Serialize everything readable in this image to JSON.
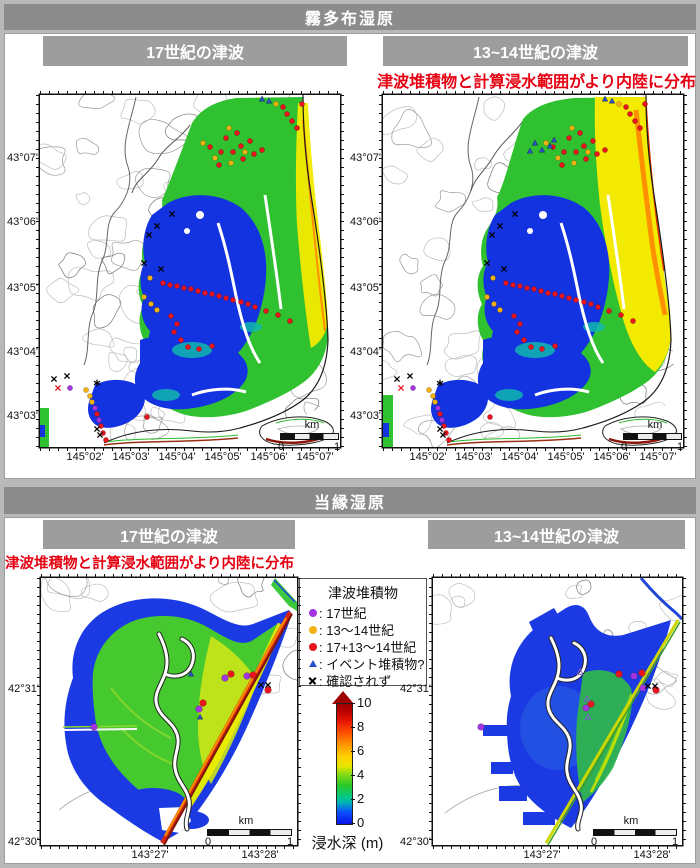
{
  "sections": {
    "kiritappu": {
      "title": "霧多布湿原",
      "left_header": "17世紀の津波",
      "right_header": "13~14世紀の津波",
      "annotation": "津波堆積物と計算浸水範囲がより内陸に分布"
    },
    "toberi": {
      "title": "当縁湿原",
      "left_header": "17世紀の津波",
      "right_header": "13~14世紀の津波",
      "annotation": "津波堆積物と計算浸水範囲がより内陸に分布"
    }
  },
  "axes": {
    "k_lat": [
      "43°07'",
      "43°06'",
      "43°05'",
      "43°04'",
      "43°03'"
    ],
    "k_lon": [
      "145°02'",
      "145°03'",
      "145°04'",
      "145°05'",
      "145°06'",
      "145°07'"
    ],
    "t_lat": [
      "42°31'",
      "42°30'"
    ],
    "t_lon": [
      "143°27'",
      "143°28'"
    ]
  },
  "legend": {
    "title": "津波堆積物",
    "items": [
      {
        "symbol": "dot",
        "color": "#a335e0",
        "label": ": 17世紀"
      },
      {
        "symbol": "dot",
        "color": "#f2b211",
        "label": ": 13〜14世紀"
      },
      {
        "symbol": "dot",
        "color": "#e8141e",
        "label": ": 17+13〜14世紀"
      },
      {
        "symbol": "triangle",
        "color": "#2a50c8",
        "label": ": イベント堆積物?"
      },
      {
        "symbol": "cross",
        "color": "#000000",
        "label": ": 確認されず"
      }
    ]
  },
  "colorbar": {
    "ticks": [
      "10",
      "8",
      "6",
      "4",
      "2",
      "0"
    ],
    "label": "浸水深 (m)"
  },
  "scalebar": {
    "unit": "km",
    "start": "0",
    "end": "1"
  },
  "marker_colors": {
    "p": "#a335e0",
    "y": "#f2b211",
    "r": "#e8141e",
    "b": "#2a50c8",
    "o": "#7a5ad0",
    "x": "#000000",
    "rx": "#e8141e",
    "s": "#000000"
  },
  "markers": {
    "k_common": [
      [
        "y",
        163,
        48
      ],
      [
        "y",
        175,
        63
      ],
      [
        "y",
        189,
        33
      ],
      [
        "y",
        191,
        68
      ],
      [
        "y",
        205,
        57
      ],
      [
        "r",
        170,
        52
      ],
      [
        "r",
        181,
        57
      ],
      [
        "r",
        193,
        57
      ],
      [
        "r",
        201,
        51
      ],
      [
        "r",
        186,
        43
      ],
      [
        "r",
        210,
        46
      ],
      [
        "r",
        197,
        38
      ],
      [
        "r",
        179,
        70
      ],
      [
        "r",
        203,
        64
      ],
      [
        "r",
        214,
        59
      ],
      [
        "r",
        222,
        55
      ],
      [
        "r",
        243,
        12
      ],
      [
        "r",
        247,
        19
      ],
      [
        "r",
        252,
        26
      ],
      [
        "r",
        257,
        33
      ],
      [
        "r",
        262,
        9
      ],
      [
        "y",
        236,
        9
      ],
      [
        "b",
        229,
        6
      ],
      [
        "b",
        222,
        4
      ],
      [
        "x",
        132,
        119
      ],
      [
        "x",
        117,
        131
      ],
      [
        "x",
        109,
        140
      ],
      [
        "x",
        121,
        174
      ],
      [
        "x",
        104,
        168
      ],
      [
        "y",
        110,
        183
      ],
      [
        "y",
        104,
        202
      ],
      [
        "y",
        111,
        209
      ],
      [
        "y",
        117,
        215
      ],
      [
        "r",
        123,
        188
      ],
      [
        "r",
        130,
        190
      ],
      [
        "r",
        137,
        191
      ],
      [
        "r",
        144,
        193
      ],
      [
        "r",
        151,
        194
      ],
      [
        "r",
        158,
        196
      ],
      [
        "r",
        165,
        198
      ],
      [
        "r",
        172,
        199
      ],
      [
        "r",
        179,
        201
      ],
      [
        "r",
        186,
        203
      ],
      [
        "r",
        193,
        205
      ],
      [
        "r",
        201,
        207
      ],
      [
        "r",
        208,
        209
      ],
      [
        "r",
        215,
        212
      ],
      [
        "r",
        226,
        216
      ],
      [
        "r",
        238,
        220
      ],
      [
        "r",
        250,
        226
      ],
      [
        "r",
        131,
        221
      ],
      [
        "r",
        137,
        229
      ],
      [
        "r",
        134,
        237
      ],
      [
        "r",
        141,
        245
      ],
      [
        "r",
        148,
        252
      ],
      [
        "r",
        159,
        254
      ],
      [
        "r",
        172,
        251
      ],
      [
        "r",
        107,
        322
      ],
      [
        "rx",
        18,
        293
      ],
      [
        "x",
        14,
        284
      ],
      [
        "x",
        27,
        281
      ],
      [
        "s",
        57,
        288
      ],
      [
        "y",
        46,
        295
      ],
      [
        "y",
        50,
        301
      ],
      [
        "y",
        52,
        307
      ],
      [
        "p",
        30,
        293
      ],
      [
        "p",
        55,
        313
      ],
      [
        "p",
        59,
        325
      ],
      [
        "r",
        57,
        319
      ],
      [
        "r",
        61,
        331
      ],
      [
        "r",
        63,
        338
      ],
      [
        "r",
        66,
        345
      ],
      [
        "x",
        57,
        334
      ],
      [
        "x",
        60,
        340
      ]
    ],
    "k13_extra": [
      [
        "b",
        152,
        48
      ],
      [
        "b",
        159,
        55
      ],
      [
        "b",
        167,
        51
      ],
      [
        "b",
        147,
        56
      ],
      [
        "b",
        171,
        45
      ]
    ],
    "t17": [
      [
        "p",
        184,
        100
      ],
      [
        "p",
        206,
        98
      ],
      [
        "p",
        158,
        131
      ],
      [
        "p",
        53,
        149
      ],
      [
        "r",
        190,
        96
      ],
      [
        "r",
        212,
        97
      ],
      [
        "r",
        227,
        112
      ],
      [
        "r",
        162,
        125
      ],
      [
        "x",
        220,
        107
      ],
      [
        "x",
        227,
        107
      ],
      [
        "b",
        150,
        96
      ],
      [
        "b",
        159,
        139
      ]
    ],
    "t13": [
      [
        "p",
        201,
        98
      ],
      [
        "p",
        210,
        110
      ],
      [
        "p",
        153,
        130
      ],
      [
        "p",
        48,
        149
      ],
      [
        "r",
        186,
        96
      ],
      [
        "r",
        209,
        95
      ],
      [
        "r",
        223,
        112
      ],
      [
        "r",
        158,
        126
      ],
      [
        "x",
        215,
        108
      ],
      [
        "x",
        222,
        108
      ],
      [
        "o",
        147,
        94
      ],
      [
        "o",
        154,
        121
      ],
      [
        "o",
        155,
        139
      ]
    ]
  }
}
